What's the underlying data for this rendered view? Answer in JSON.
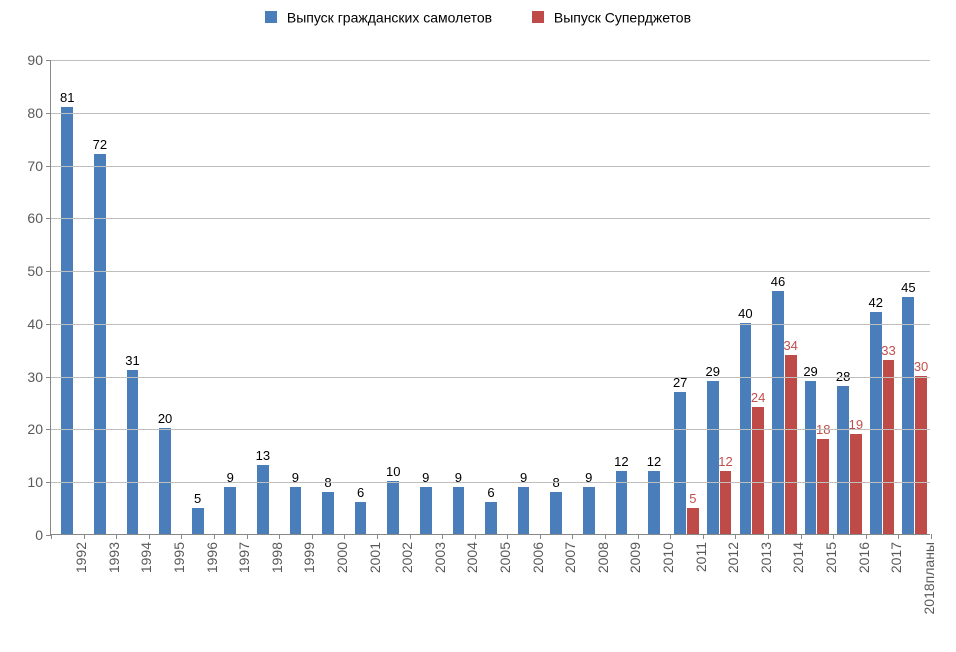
{
  "legend": {
    "items": [
      {
        "label": "Выпуск гражданских самолетов",
        "color": "#4a7ebb"
      },
      {
        "label": "Выпуск Суперджетов",
        "color": "#be4b48"
      }
    ]
  },
  "chart": {
    "type": "bar",
    "background_color": "#ffffff",
    "grid_color": "#bfbfbf",
    "axis_color": "#888888",
    "ylim": [
      0,
      90
    ],
    "ytick_step": 10,
    "yticks": [
      0,
      10,
      20,
      30,
      40,
      50,
      60,
      70,
      80,
      90
    ],
    "y_label_fontsize": 14,
    "x_label_fontsize": 14,
    "data_label_fontsize": 13,
    "data_label_color_s1": "#000000",
    "data_label_color_s2": "#c0504d",
    "categories": [
      "1992",
      "1993",
      "1994",
      "1995",
      "1996",
      "1997",
      "1998",
      "1999",
      "2000",
      "2001",
      "2002",
      "2003",
      "2004",
      "2005",
      "2006",
      "2007",
      "2008",
      "2009",
      "2010",
      "2011",
      "2012",
      "2013",
      "2014",
      "2015",
      "2016",
      "2017",
      "2018планы"
    ],
    "series": [
      {
        "name": "Выпуск гражданских самолетов",
        "color": "#4a7ebb",
        "values": [
          81,
          72,
          31,
          20,
          5,
          9,
          13,
          9,
          8,
          6,
          10,
          9,
          9,
          6,
          9,
          8,
          9,
          12,
          12,
          27,
          29,
          40,
          46,
          29,
          28,
          42,
          45
        ]
      },
      {
        "name": "Выпуск Суперджетов",
        "color": "#be4b48",
        "values": [
          null,
          null,
          null,
          null,
          null,
          null,
          null,
          null,
          null,
          null,
          null,
          null,
          null,
          null,
          null,
          null,
          null,
          null,
          null,
          5,
          12,
          24,
          34,
          18,
          19,
          33,
          30
        ]
      }
    ]
  }
}
